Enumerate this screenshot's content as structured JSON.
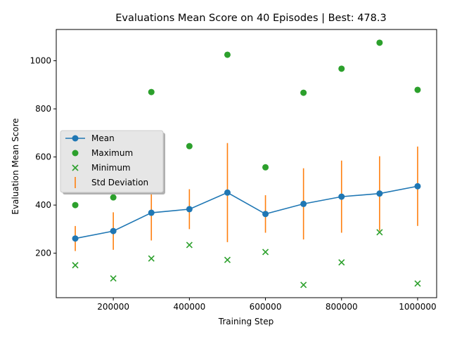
{
  "chart_data": {
    "type": "line",
    "title": "Evaluations Mean Score on 40 Episodes | Best: 478.3",
    "xlabel": "Training Step",
    "ylabel": "Evaluation Mean Score",
    "xlim": [
      50000,
      1050000
    ],
    "ylim": [
      15,
      1130
    ],
    "xticks": [
      200000,
      400000,
      600000,
      800000,
      1000000
    ],
    "yticks": [
      200,
      400,
      600,
      800,
      1000
    ],
    "grid": false,
    "legend_position": "center-left",
    "x": [
      100000,
      200000,
      300000,
      400000,
      500000,
      600000,
      700000,
      800000,
      900000,
      1000000
    ],
    "series": [
      {
        "name": "Mean",
        "kind": "line-marker",
        "color": "#1f77b4",
        "values": [
          261,
          292,
          368,
          383,
          452,
          363,
          405,
          435,
          448,
          478.3
        ]
      },
      {
        "name": "Maximum",
        "kind": "scatter-circle",
        "color": "#2ca02c",
        "values": [
          400,
          432,
          870,
          645,
          1025,
          557,
          867,
          967,
          1075,
          879
        ]
      },
      {
        "name": "Minimum",
        "kind": "scatter-x",
        "color": "#2ca02c",
        "values": [
          150,
          95,
          178,
          234,
          172,
          205,
          68,
          162,
          287,
          74
        ]
      },
      {
        "name": "Std Deviation",
        "kind": "errorbar",
        "color": "#ff7f0e",
        "values": [
          52,
          78,
          115,
          83,
          206,
          78,
          148,
          150,
          155,
          165
        ]
      }
    ]
  }
}
